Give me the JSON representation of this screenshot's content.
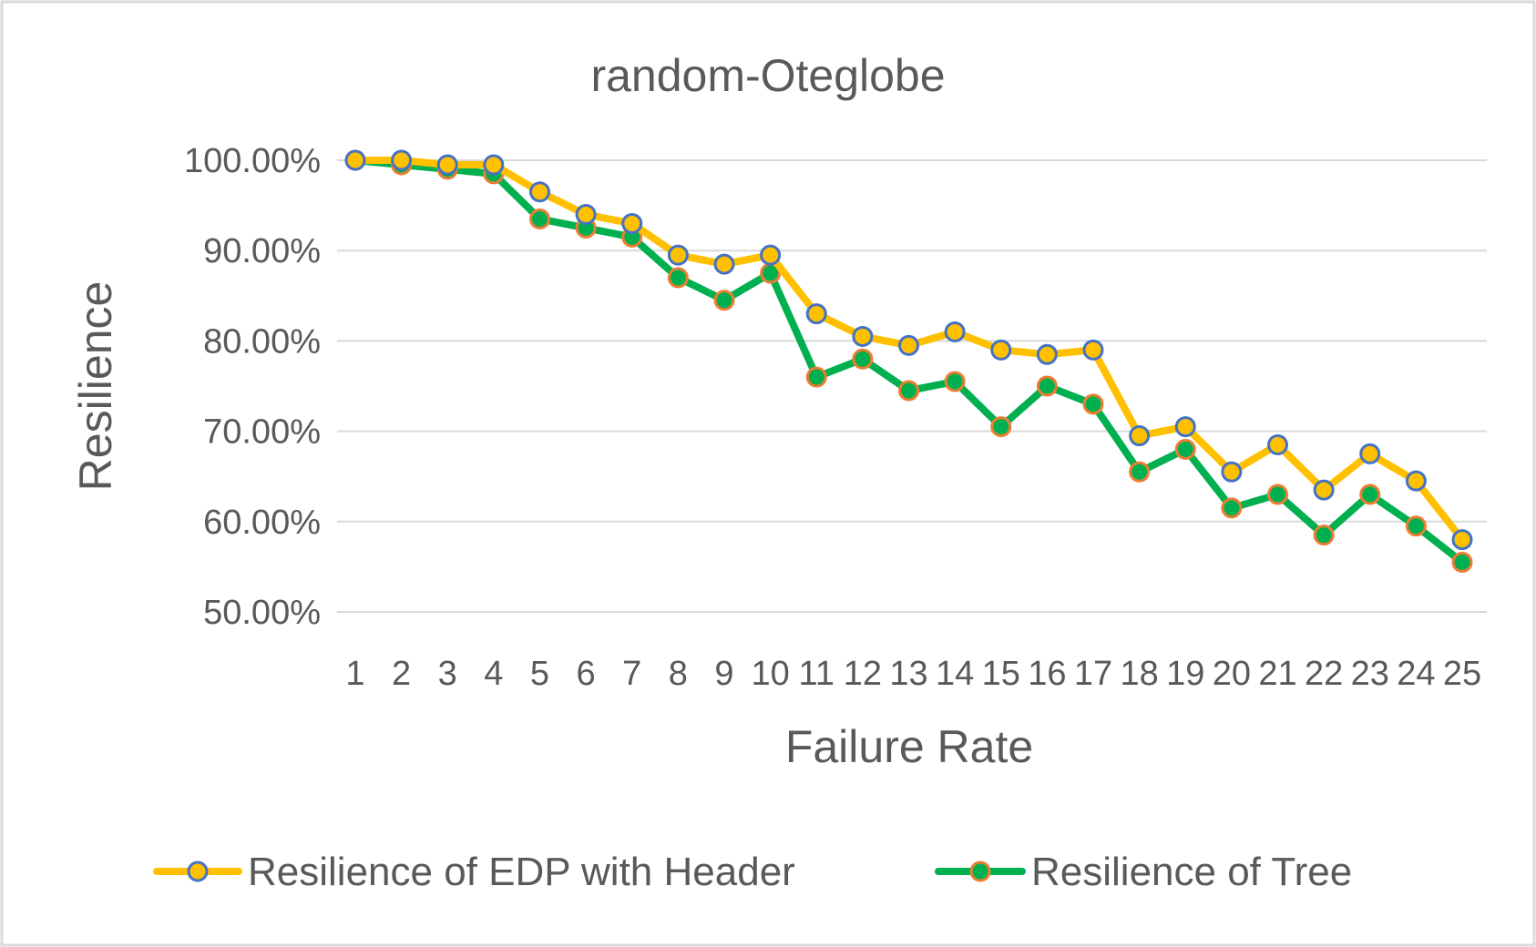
{
  "chart_data": {
    "type": "line",
    "title": "random-Oteglobe",
    "xlabel": "Failure Rate",
    "ylabel": "Resilience",
    "categories": [
      "1",
      "2",
      "3",
      "4",
      "5",
      "6",
      "7",
      "8",
      "9",
      "10",
      "11",
      "12",
      "13",
      "14",
      "15",
      "16",
      "17",
      "18",
      "19",
      "20",
      "21",
      "22",
      "23",
      "24",
      "25"
    ],
    "ylim": [
      0.5,
      1.0
    ],
    "yticks": [
      "50.00%",
      "60.00%",
      "70.00%",
      "80.00%",
      "90.00%",
      "100.00%"
    ],
    "grid": true,
    "legend_position": "bottom",
    "series": [
      {
        "name": "Resilience of EDP with Header",
        "line_color": "#ffc000",
        "marker_fill": "#ffc000",
        "marker_edge": "#4472c4",
        "values": [
          1.0,
          1.0,
          0.995,
          0.995,
          0.965,
          0.94,
          0.93,
          0.895,
          0.885,
          0.895,
          0.83,
          0.805,
          0.795,
          0.81,
          0.79,
          0.785,
          0.79,
          0.695,
          0.705,
          0.655,
          0.685,
          0.635,
          0.675,
          0.645,
          0.58
        ]
      },
      {
        "name": "Resilience of Tree",
        "line_color": "#00b050",
        "marker_fill": "#00b050",
        "marker_edge": "#ed7d31",
        "values": [
          1.0,
          0.995,
          0.99,
          0.985,
          0.935,
          0.925,
          0.915,
          0.87,
          0.845,
          0.875,
          0.76,
          0.78,
          0.745,
          0.755,
          0.705,
          0.75,
          0.73,
          0.655,
          0.68,
          0.615,
          0.63,
          0.585,
          0.63,
          0.595,
          0.555
        ]
      }
    ]
  }
}
